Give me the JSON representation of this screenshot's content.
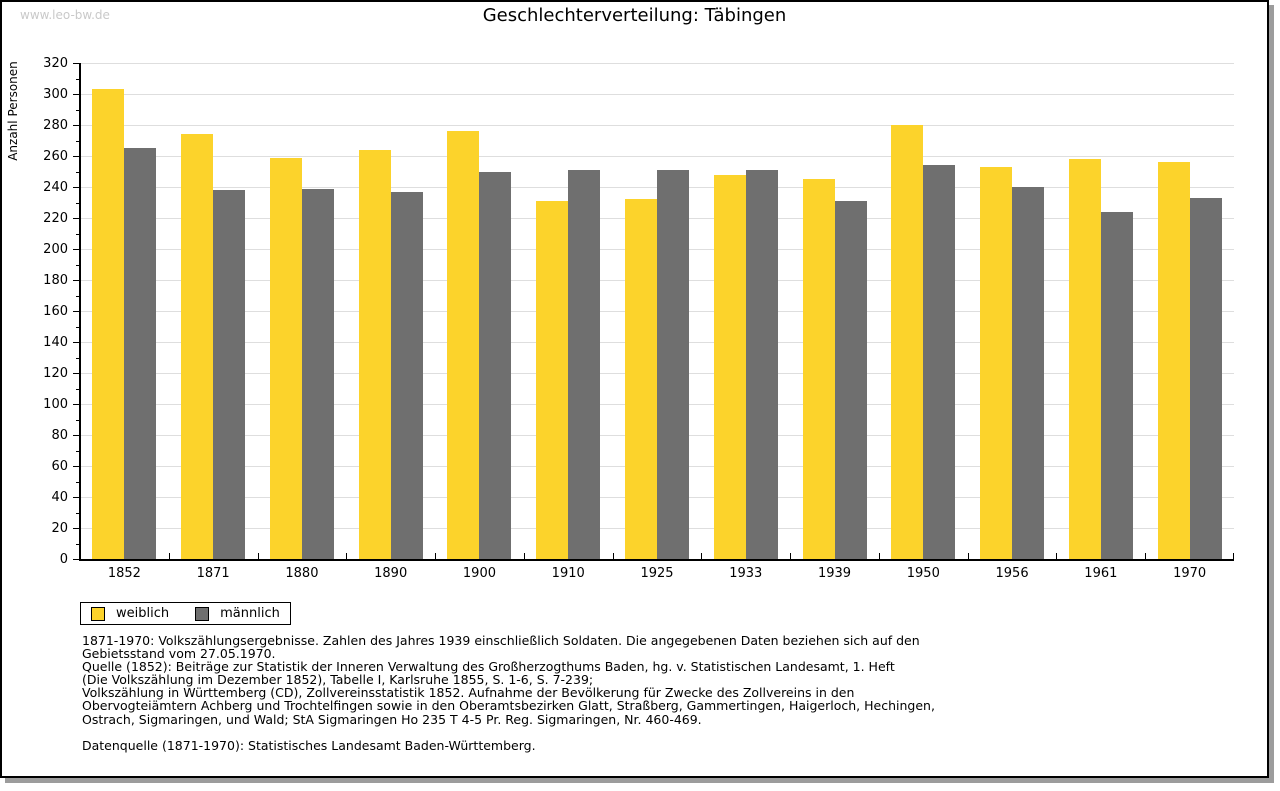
{
  "watermark": "www.leo-bw.de",
  "chart_data": {
    "type": "bar",
    "title": "Geschlechterverteilung: Täbingen",
    "ylabel": "Anzahl Personen",
    "ylim": [
      0,
      320
    ],
    "ytick_step": 20,
    "ytick_minor_step": 10,
    "grid": true,
    "legend_position": "bottom-left",
    "categories": [
      "1852",
      "1871",
      "1880",
      "1890",
      "1900",
      "1910",
      "1925",
      "1933",
      "1939",
      "1950",
      "1956",
      "1961",
      "1970"
    ],
    "series": [
      {
        "name": "weiblich",
        "color": "#fcd32b",
        "values": [
          303,
          274,
          259,
          264,
          276,
          231,
          232,
          248,
          245,
          280,
          253,
          258,
          256
        ]
      },
      {
        "name": "männlich",
        "color": "#6f6f6f",
        "values": [
          265,
          238,
          239,
          237,
          250,
          251,
          251,
          251,
          231,
          254,
          240,
          224,
          233
        ]
      }
    ]
  },
  "footer": {
    "lines": [
      "1871-1970: Volkszählungsergebnisse. Zahlen des Jahres 1939 einschließlich Soldaten. Die angegebenen Daten beziehen sich auf den",
      "Gebietsstand vom 27.05.1970.",
      "Quelle (1852): Beiträge zur Statistik der Inneren Verwaltung des Großherzogthums Baden, hg. v. Statistischen Landesamt, 1. Heft",
      "(Die Volkszählung im Dezember 1852), Tabelle I, Karlsruhe 1855, S. 1-6, S. 7-239;",
      "Volkszählung in Württemberg (CD), Zollvereinsstatistik 1852. Aufnahme der Bevölkerung für Zwecke des Zollvereins in den",
      "Obervogteiämtern Achberg und Trochtelfingen sowie in den Oberamtsbezirken Glatt, Straßberg, Gammertingen, Haigerloch, Hechingen,",
      "Ostrach, Sigmaringen, und Wald; StA Sigmaringen Ho 235 T 4-5 Pr. Reg. Sigmaringen, Nr. 460-469.",
      "",
      "Datenquelle (1871-1970): Statistisches Landesamt Baden-Württemberg."
    ]
  },
  "colors": {
    "grid": "#dedede",
    "axis": "#000000",
    "watermark": "#c9c9c9",
    "frame_shadow": "#9c9c9c"
  }
}
